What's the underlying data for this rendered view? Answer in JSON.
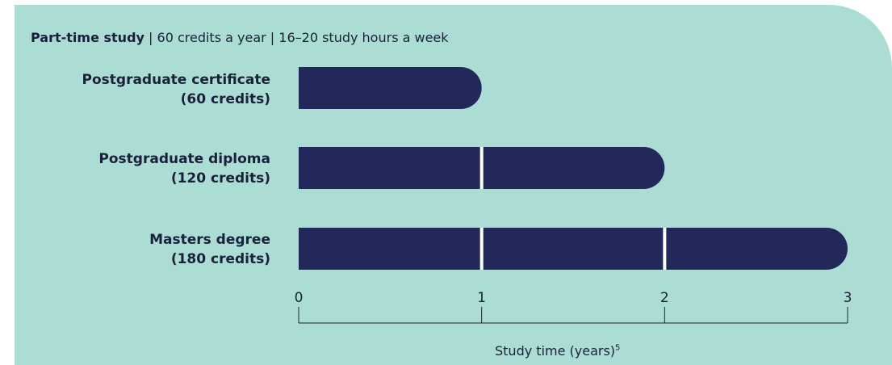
{
  "header": {
    "title_bold": "Part-time study",
    "title_rest": " | 60 credits a year | 16–20 study hours a week"
  },
  "chart_data": {
    "type": "bar",
    "orientation": "horizontal",
    "categories": [
      {
        "line1": "Postgraduate certificate",
        "line2": "(60 credits)"
      },
      {
        "line1": "Postgraduate diploma",
        "line2": "(120 credits)"
      },
      {
        "line1": "Masters degree",
        "line2": "(180 credits)"
      }
    ],
    "values": [
      1,
      2,
      3
    ],
    "xlim": [
      0,
      3
    ],
    "xticks": [
      "0",
      "1",
      "2",
      "3"
    ],
    "xlabel": "Study time (years)",
    "xlabel_superscript": "5",
    "bar_color": "#22285a",
    "segment_divider_color": "#ffffff",
    "background_color": "#acddd5"
  }
}
